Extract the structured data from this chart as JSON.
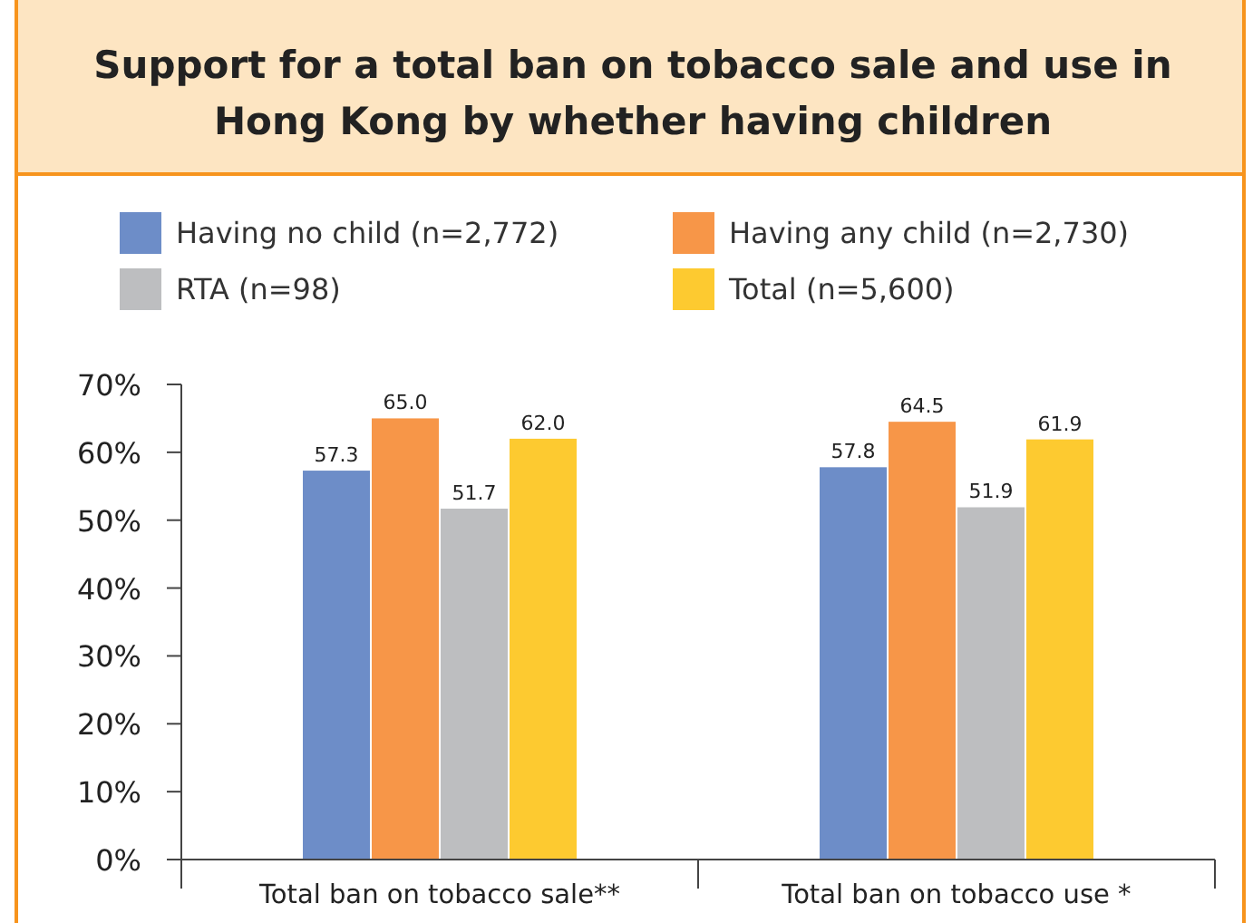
{
  "chart_data": {
    "type": "bar",
    "title": "Support for a total ban on tobacco sale and use in Hong Kong by whether having children",
    "categories": [
      "Total ban on tobacco sale**",
      "Total ban on tobacco use *"
    ],
    "series": [
      {
        "name": "Having no child (n=2,772)",
        "color": "#6d8dc8",
        "values": [
          57.3,
          57.8
        ],
        "value_labels": [
          "57.3",
          "57.8"
        ]
      },
      {
        "name": "Having any child (n=2,730)",
        "color": "#f79648",
        "values": [
          65.0,
          64.5
        ],
        "value_labels": [
          "65.0",
          "64.5"
        ]
      },
      {
        "name": "RTA (n=98)",
        "color": "#bdbec0",
        "values": [
          51.7,
          51.9
        ],
        "value_labels": [
          "51.7",
          "51.9"
        ]
      },
      {
        "name": "Total (n=5,600)",
        "color": "#fdca30",
        "values": [
          62.0,
          61.9
        ],
        "value_labels": [
          "62.0",
          "61.9"
        ]
      }
    ],
    "ylim": [
      0,
      70
    ],
    "yticks": [
      {
        "value": 0,
        "label": "0%"
      },
      {
        "value": 10,
        "label": "10%"
      },
      {
        "value": 20,
        "label": "20%"
      },
      {
        "value": 30,
        "label": "30%"
      },
      {
        "value": 40,
        "label": "40%"
      },
      {
        "value": 50,
        "label": "50%"
      },
      {
        "value": 60,
        "label": "60%"
      },
      {
        "value": 70,
        "label": "70%"
      }
    ],
    "legend": "top",
    "grid": false
  }
}
